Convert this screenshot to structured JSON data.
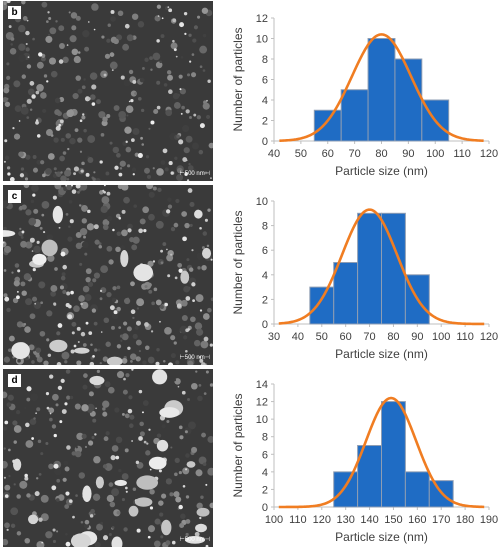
{
  "chart_data": [
    {
      "type": "bar",
      "panel_label": "b",
      "scale_bar_label": "500 nm",
      "xlabel": "Particle size (nm)",
      "ylabel": "Number of particles",
      "x_ticks": [
        "40",
        "50",
        "60",
        "70",
        "80",
        "90",
        "100",
        "110",
        "120"
      ],
      "y_ticks": [
        "0",
        "2",
        "4",
        "6",
        "8",
        "10",
        "12"
      ],
      "xlim": [
        40,
        120
      ],
      "ylim": [
        0,
        12
      ],
      "bars": [
        {
          "from": 55,
          "to": 65,
          "value": 3
        },
        {
          "from": 65,
          "to": 75,
          "value": 5
        },
        {
          "from": 75,
          "to": 85,
          "value": 10
        },
        {
          "from": 85,
          "to": 95,
          "value": 8
        },
        {
          "from": 95,
          "to": 105,
          "value": 4
        }
      ],
      "fit_curve": {
        "type": "gaussian",
        "mean": 80,
        "sd": 11,
        "peak": 10.4
      }
    },
    {
      "type": "bar",
      "panel_label": "c",
      "scale_bar_label": "500 nm",
      "xlabel": "Particle size (nm)",
      "ylabel": "Number of particles",
      "x_ticks": [
        "30",
        "40",
        "50",
        "60",
        "70",
        "80",
        "90",
        "100",
        "110",
        "120"
      ],
      "y_ticks": [
        "0",
        "2",
        "4",
        "6",
        "8",
        "10"
      ],
      "xlim": [
        30,
        120
      ],
      "ylim": [
        0,
        10
      ],
      "bars": [
        {
          "from": 45,
          "to": 55,
          "value": 3
        },
        {
          "from": 55,
          "to": 65,
          "value": 5
        },
        {
          "from": 65,
          "to": 75,
          "value": 9
        },
        {
          "from": 75,
          "to": 85,
          "value": 9
        },
        {
          "from": 85,
          "to": 95,
          "value": 4
        }
      ],
      "fit_curve": {
        "type": "gaussian",
        "mean": 70,
        "sd": 11.5,
        "peak": 9.3
      }
    },
    {
      "type": "bar",
      "panel_label": "d",
      "scale_bar_label": "500 nm",
      "xlabel": "Particle size (nm)",
      "ylabel": "Number of particles",
      "x_ticks": [
        "100",
        "110",
        "120",
        "130",
        "140",
        "150",
        "160",
        "170",
        "180",
        "190"
      ],
      "y_ticks": [
        "0",
        "2",
        "4",
        "6",
        "8",
        "10",
        "12",
        "14"
      ],
      "xlim": [
        100,
        190
      ],
      "ylim": [
        0,
        14
      ],
      "bars": [
        {
          "from": 125,
          "to": 135,
          "value": 4
        },
        {
          "from": 135,
          "to": 145,
          "value": 7
        },
        {
          "from": 145,
          "to": 155,
          "value": 12
        },
        {
          "from": 155,
          "to": 165,
          "value": 4
        },
        {
          "from": 165,
          "to": 175,
          "value": 3
        }
      ],
      "fit_curve": {
        "type": "gaussian",
        "mean": 149,
        "sd": 10.5,
        "peak": 12.4
      }
    }
  ],
  "colors": {
    "bar_fill": "#1f6cc4",
    "bar_edge": "#8e9db3",
    "fit_line": "#f07d22",
    "axis_text": "#404040",
    "axis_line": "#bfbfbf",
    "sem_background": "#3a3a3a"
  }
}
